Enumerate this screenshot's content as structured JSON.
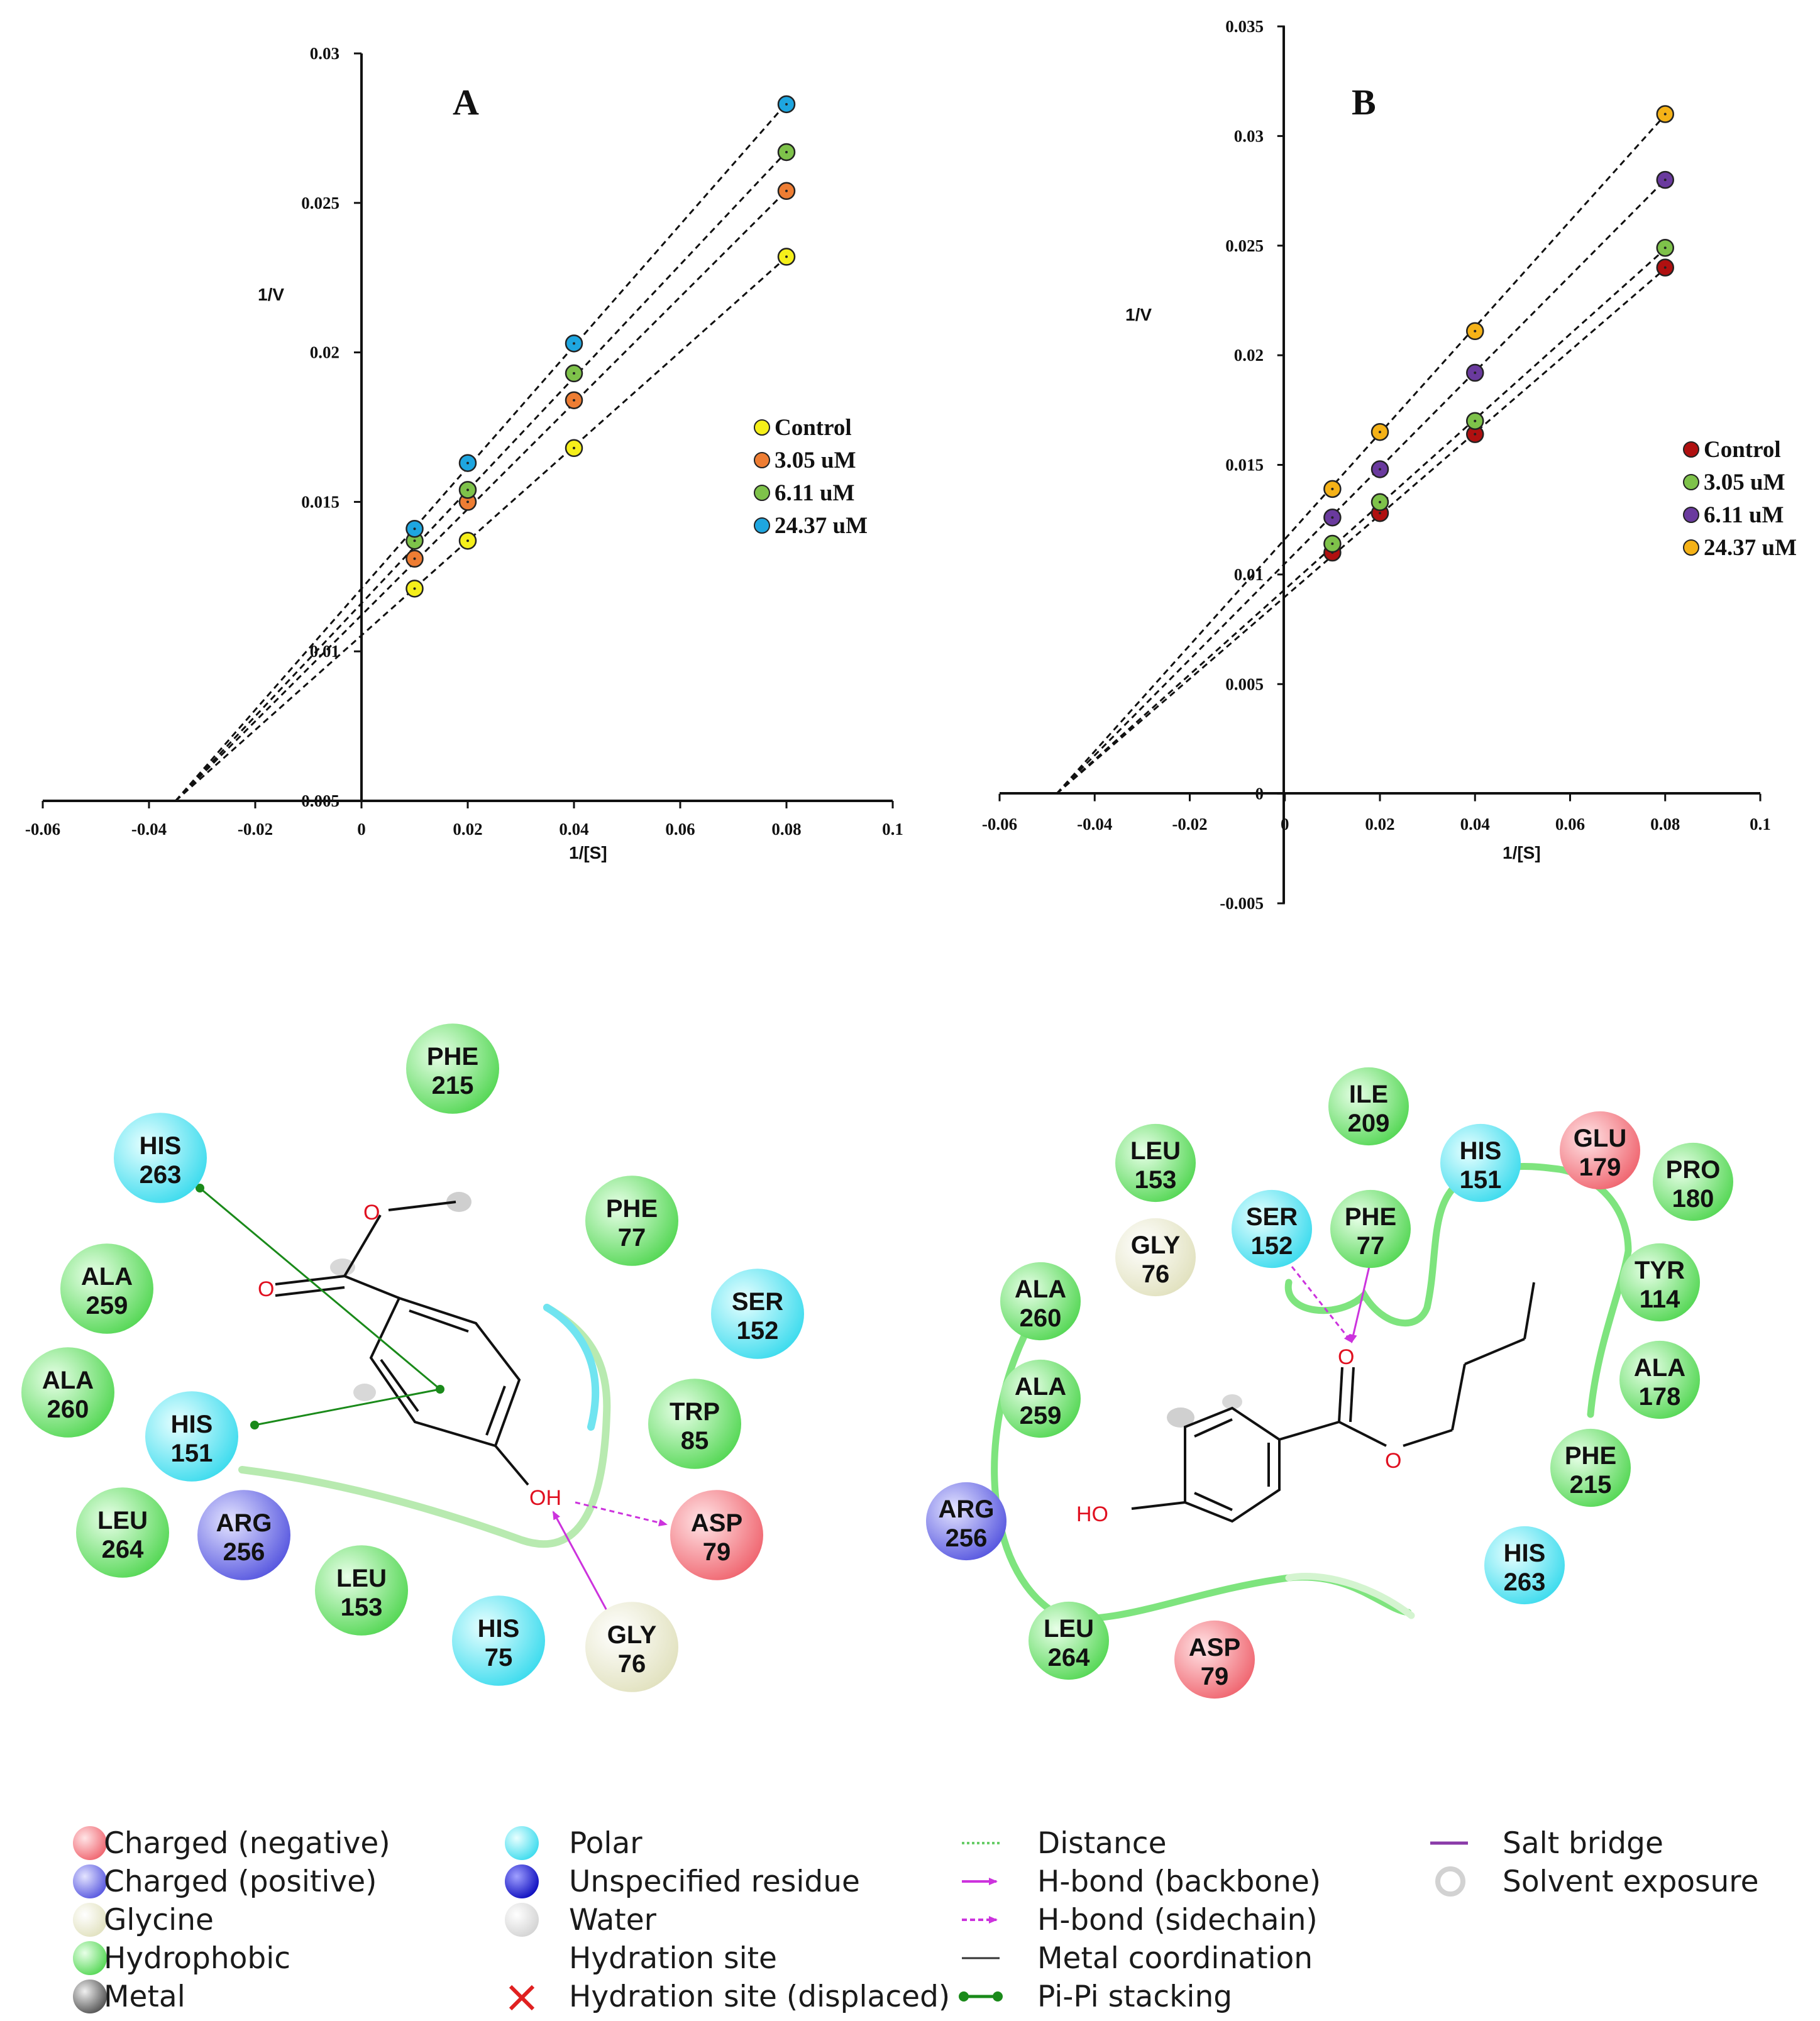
{
  "chart_data": [
    {
      "type": "scatter",
      "panel_label": "A",
      "xlabel": "1/[S]",
      "ylabel": "1/V",
      "xlim": [
        -0.06,
        0.1
      ],
      "ylim": [
        0.005,
        0.03
      ],
      "xticks": [
        "-0.06",
        "-0.04",
        "-0.02",
        "0",
        "0.02",
        "0.04",
        "0.06",
        "0.08",
        "0.1"
      ],
      "yticks": [
        "0.005",
        "0.01",
        "0.015",
        "0.02",
        "0.025",
        "0.03"
      ],
      "legend_position": "right",
      "series": [
        {
          "name": "Control",
          "color": "#f5ef1a",
          "x": [
            0.01,
            0.02,
            0.04,
            0.08
          ],
          "y": [
            0.0121,
            0.0137,
            0.0168,
            0.0232
          ],
          "fit_x0": -0.035
        },
        {
          "name": "3.05 uM",
          "color": "#ee7d33",
          "x": [
            0.01,
            0.02,
            0.04,
            0.08
          ],
          "y": [
            0.0131,
            0.015,
            0.0184,
            0.0254
          ],
          "fit_x0": -0.035
        },
        {
          "name": "6.11 uM",
          "color": "#7ec24a",
          "x": [
            0.01,
            0.02,
            0.04,
            0.08
          ],
          "y": [
            0.0137,
            0.0154,
            0.0193,
            0.0267
          ],
          "fit_x0": -0.035
        },
        {
          "name": "24.37 uM",
          "color": "#1ea6e0",
          "x": [
            0.01,
            0.02,
            0.04,
            0.08
          ],
          "y": [
            0.0141,
            0.0163,
            0.0203,
            0.0283
          ],
          "fit_x0": -0.035
        }
      ]
    },
    {
      "type": "scatter",
      "panel_label": "B",
      "xlabel": "1/[S]",
      "ylabel": "1/V",
      "xlim": [
        -0.06,
        0.1
      ],
      "ylim": [
        -0.005,
        0.035
      ],
      "xticks": [
        "-0.06",
        "-0.04",
        "-0.02",
        "0",
        "0.02",
        "0.04",
        "0.06",
        "0.08",
        "0.1"
      ],
      "yticks": [
        "-0.005",
        "0",
        "0.005",
        "0.01",
        "0.015",
        "0.02",
        "0.025",
        "0.03",
        "0.035"
      ],
      "legend_position": "right",
      "series": [
        {
          "name": "Control",
          "color": "#b01010",
          "x": [
            0.01,
            0.02,
            0.04,
            0.08
          ],
          "y": [
            0.011,
            0.0128,
            0.0164,
            0.024
          ],
          "fit_x0": -0.048
        },
        {
          "name": "3.05 uM",
          "color": "#7ec24a",
          "x": [
            0.01,
            0.02,
            0.04,
            0.08
          ],
          "y": [
            0.0114,
            0.0133,
            0.017,
            0.0249
          ],
          "fit_x0": -0.048
        },
        {
          "name": "6.11 uM",
          "color": "#6a3a9e",
          "x": [
            0.01,
            0.02,
            0.04,
            0.08
          ],
          "y": [
            0.0126,
            0.0148,
            0.0192,
            0.028
          ],
          "fit_x0": -0.048
        },
        {
          "name": "24.37 uM",
          "color": "#f5b217",
          "x": [
            0.01,
            0.02,
            0.04,
            0.08
          ],
          "y": [
            0.0139,
            0.0165,
            0.0211,
            0.031
          ],
          "fit_x0": -0.048
        }
      ]
    }
  ],
  "residue_colors": {
    "negative": "#f5707a",
    "positive": "#7070e8",
    "glycine": "#eeeed0",
    "hydrophobic": "#7ee47e",
    "polar": "#6ee6f2"
  },
  "diagram_left": {
    "residues": [
      {
        "name": "PHE",
        "num": "215",
        "kind": "hydrophobic"
      },
      {
        "name": "HIS",
        "num": "263",
        "kind": "polar"
      },
      {
        "name": "PHE",
        "num": "77",
        "kind": "hydrophobic"
      },
      {
        "name": "ALA",
        "num": "259",
        "kind": "hydrophobic"
      },
      {
        "name": "SER",
        "num": "152",
        "kind": "polar"
      },
      {
        "name": "ALA",
        "num": "260",
        "kind": "hydrophobic"
      },
      {
        "name": "HIS",
        "num": "151",
        "kind": "polar"
      },
      {
        "name": "TRP",
        "num": "85",
        "kind": "hydrophobic"
      },
      {
        "name": "LEU",
        "num": "264",
        "kind": "hydrophobic"
      },
      {
        "name": "ARG",
        "num": "256",
        "kind": "positive"
      },
      {
        "name": "ASP",
        "num": "79",
        "kind": "negative"
      },
      {
        "name": "LEU",
        "num": "153",
        "kind": "hydrophobic"
      },
      {
        "name": "HIS",
        "num": "75",
        "kind": "polar"
      },
      {
        "name": "GLY",
        "num": "76",
        "kind": "glycine"
      }
    ],
    "atoms": {
      "o1": "O",
      "o2": "O",
      "oh": "OH"
    }
  },
  "diagram_right": {
    "residues": [
      {
        "name": "ILE",
        "num": "209",
        "kind": "hydrophobic"
      },
      {
        "name": "LEU",
        "num": "153",
        "kind": "hydrophobic"
      },
      {
        "name": "HIS",
        "num": "151",
        "kind": "polar"
      },
      {
        "name": "GLU",
        "num": "179",
        "kind": "negative"
      },
      {
        "name": "PRO",
        "num": "180",
        "kind": "hydrophobic"
      },
      {
        "name": "SER",
        "num": "152",
        "kind": "polar"
      },
      {
        "name": "PHE",
        "num": "77",
        "kind": "hydrophobic"
      },
      {
        "name": "GLY",
        "num": "76",
        "kind": "glycine"
      },
      {
        "name": "TYR",
        "num": "114",
        "kind": "hydrophobic"
      },
      {
        "name": "ALA",
        "num": "260",
        "kind": "hydrophobic"
      },
      {
        "name": "ALA",
        "num": "178",
        "kind": "hydrophobic"
      },
      {
        "name": "ALA",
        "num": "259",
        "kind": "hydrophobic"
      },
      {
        "name": "PHE",
        "num": "215",
        "kind": "hydrophobic"
      },
      {
        "name": "ARG",
        "num": "256",
        "kind": "positive"
      },
      {
        "name": "HIS",
        "num": "263",
        "kind": "polar"
      },
      {
        "name": "LEU",
        "num": "264",
        "kind": "hydrophobic"
      },
      {
        "name": "ASP",
        "num": "79",
        "kind": "negative"
      }
    ],
    "atoms": {
      "o1": "O",
      "o2": "O",
      "ho": "HO"
    }
  },
  "key": {
    "col1": [
      "Charged (negative)",
      "Charged (positive)",
      "Glycine",
      "Hydrophobic",
      "Metal"
    ],
    "col2": [
      "Polar",
      "Unspecified residue",
      "Water",
      "Hydration site",
      "Hydration site (displaced)"
    ],
    "col3": [
      "Distance",
      "H-bond (backbone)",
      "H-bond (sidechain)",
      "Metal coordination",
      "Pi-Pi stacking"
    ],
    "col4": [
      "Salt bridge",
      "Solvent exposure"
    ]
  }
}
